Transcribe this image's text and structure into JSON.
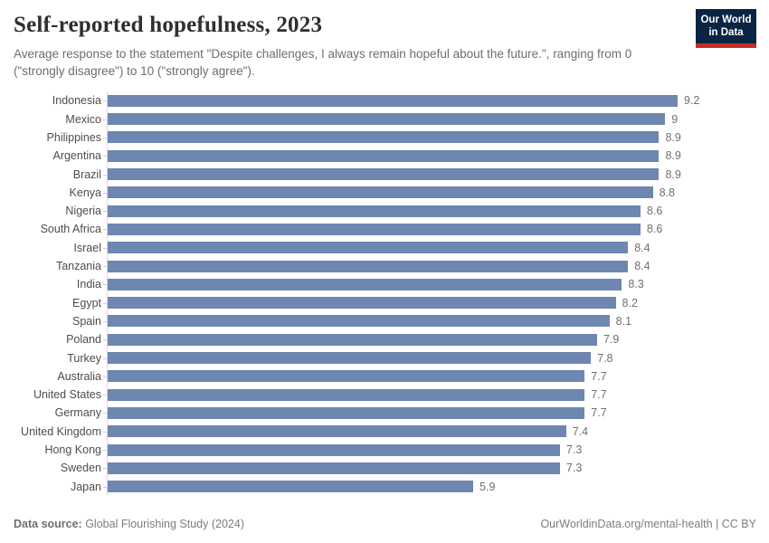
{
  "header": {
    "title": "Self-reported hopefulness, 2023",
    "subtitle": "Average response to the statement \"Despite challenges, I always remain hopeful about the future.\", ranging from 0 (\"strongly disagree\") to 10 (\"strongly agree\")."
  },
  "logo": {
    "line1": "Our World",
    "line2": "in Data"
  },
  "chart_data": {
    "type": "bar",
    "orientation": "horizontal",
    "title": "Self-reported hopefulness, 2023",
    "xlabel": "",
    "ylabel": "",
    "xlim": [
      0,
      9.2
    ],
    "grid": false,
    "legend": "none",
    "value_labels_shown": true,
    "bar_color": "#6e87b1",
    "categories": [
      "Indonesia",
      "Mexico",
      "Philippines",
      "Argentina",
      "Brazil",
      "Kenya",
      "Nigeria",
      "South Africa",
      "Israel",
      "Tanzania",
      "India",
      "Egypt",
      "Spain",
      "Poland",
      "Turkey",
      "Australia",
      "United States",
      "Germany",
      "United Kingdom",
      "Hong Kong",
      "Sweden",
      "Japan"
    ],
    "values": [
      9.2,
      9,
      8.9,
      8.9,
      8.9,
      8.8,
      8.6,
      8.6,
      8.4,
      8.4,
      8.3,
      8.2,
      8.1,
      7.9,
      7.8,
      7.7,
      7.7,
      7.7,
      7.4,
      7.3,
      7.3,
      5.9
    ]
  },
  "footer": {
    "source_label": "Data source:",
    "source_text": " Global Flourishing Study (2024)",
    "right_text": "OurWorldinData.org/mental-health | CC BY"
  },
  "colors": {
    "bar": "#6e87b1",
    "logo_bg": "#0a2443",
    "logo_accent": "#c32e27",
    "axis_line": "#d9d9d9"
  }
}
